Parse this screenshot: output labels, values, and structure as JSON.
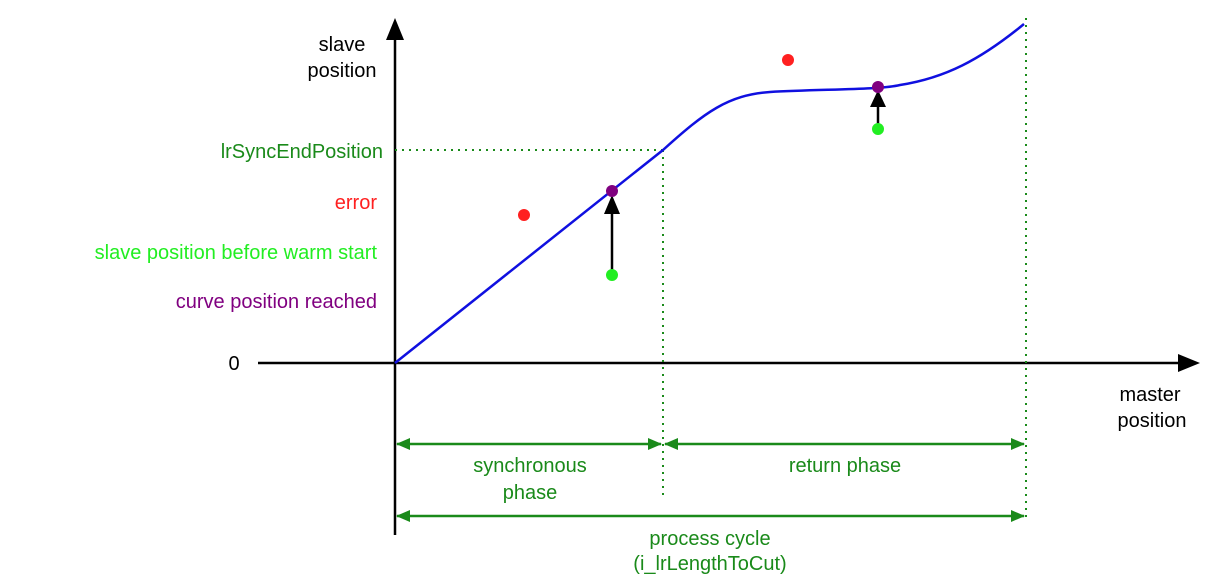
{
  "axes": {
    "y_label_line1": "slave",
    "y_label_line2": "position",
    "x_label_line1": "master",
    "x_label_line2": "position",
    "origin_label": "0"
  },
  "legend": {
    "sync_end": "lrSyncEndPosition",
    "error": "error",
    "before_warm_start": "slave position before warm start",
    "curve_reached": "curve position reached"
  },
  "phases": {
    "synchronous_line1": "synchronous",
    "synchronous_line2": "phase",
    "return": "return phase",
    "process_line1": "process cycle",
    "process_line2": "(i_lrLengthToCut)"
  },
  "colors": {
    "curve": "#1010e0",
    "axis": "#000000",
    "green_label": "#1a8a1a",
    "error": "#ff2020",
    "warm_start": "#22ee22",
    "reached": "#800080"
  }
}
